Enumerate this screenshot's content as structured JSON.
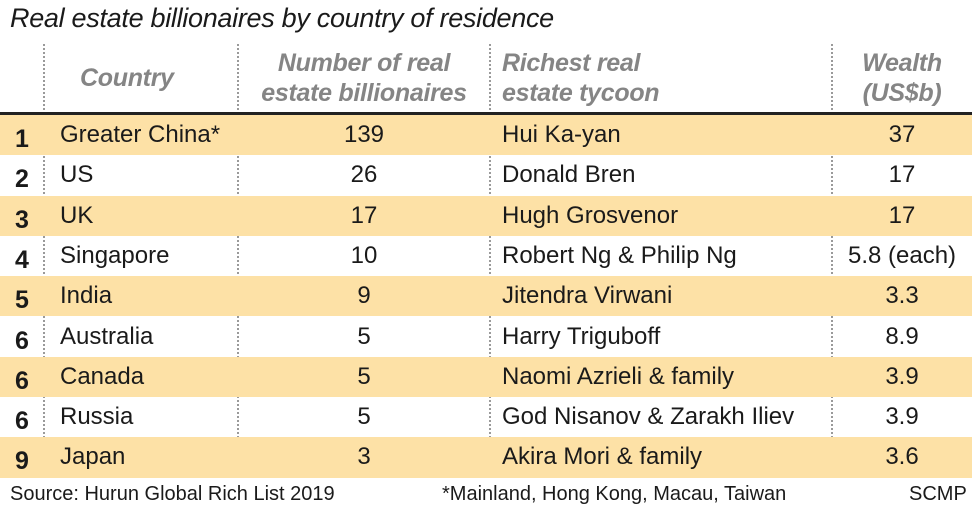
{
  "chart_data": {
    "type": "table",
    "title": "Real estate billionaires by country of residence",
    "columns": [
      "",
      "Country",
      "Number of real estate billionaires",
      "Richest real estate tycoon",
      "Wealth (US$b)"
    ],
    "header_lines": {
      "country": [
        "Country"
      ],
      "count": [
        "Number of real",
        "estate billionaires"
      ],
      "tycoon": [
        "Richest real",
        "estate tycoon"
      ],
      "wealth": [
        "Wealth",
        "(US$b)"
      ]
    },
    "rows": [
      {
        "rank": "1",
        "country": "Greater China*",
        "count": "139",
        "tycoon": "Hui Ka-yan",
        "wealth": "37"
      },
      {
        "rank": "2",
        "country": "US",
        "count": "26",
        "tycoon": "Donald Bren",
        "wealth": "17"
      },
      {
        "rank": "3",
        "country": "UK",
        "count": "17",
        "tycoon": "Hugh Grosvenor",
        "wealth": "17"
      },
      {
        "rank": "4",
        "country": "Singapore",
        "count": "10",
        "tycoon": "Robert Ng & Philip Ng",
        "wealth": "5.8 (each)"
      },
      {
        "rank": "5",
        "country": "India",
        "count": "9",
        "tycoon": "Jitendra Virwani",
        "wealth": "3.3"
      },
      {
        "rank": "6",
        "country": "Australia",
        "count": "5",
        "tycoon": "Harry Triguboff",
        "wealth": "8.9"
      },
      {
        "rank": "6",
        "country": "Canada",
        "count": "5",
        "tycoon": "Naomi Azrieli & family",
        "wealth": "3.9"
      },
      {
        "rank": "6",
        "country": "Russia",
        "count": "5",
        "tycoon": "God Nisanov & Zarakh Iliev",
        "wealth": "3.9"
      },
      {
        "rank": "9",
        "country": "Japan",
        "count": "3",
        "tycoon": "Akira Mori & family",
        "wealth": "3.6"
      }
    ],
    "source": "Source: Hurun Global Rich List 2019",
    "footnote": "*Mainland, Hong Kong, Macau, Taiwan",
    "credit": "SCMP",
    "colors": {
      "shade": "#fde1a6",
      "header_text": "#858585",
      "text": "#1a1a1a"
    }
  }
}
